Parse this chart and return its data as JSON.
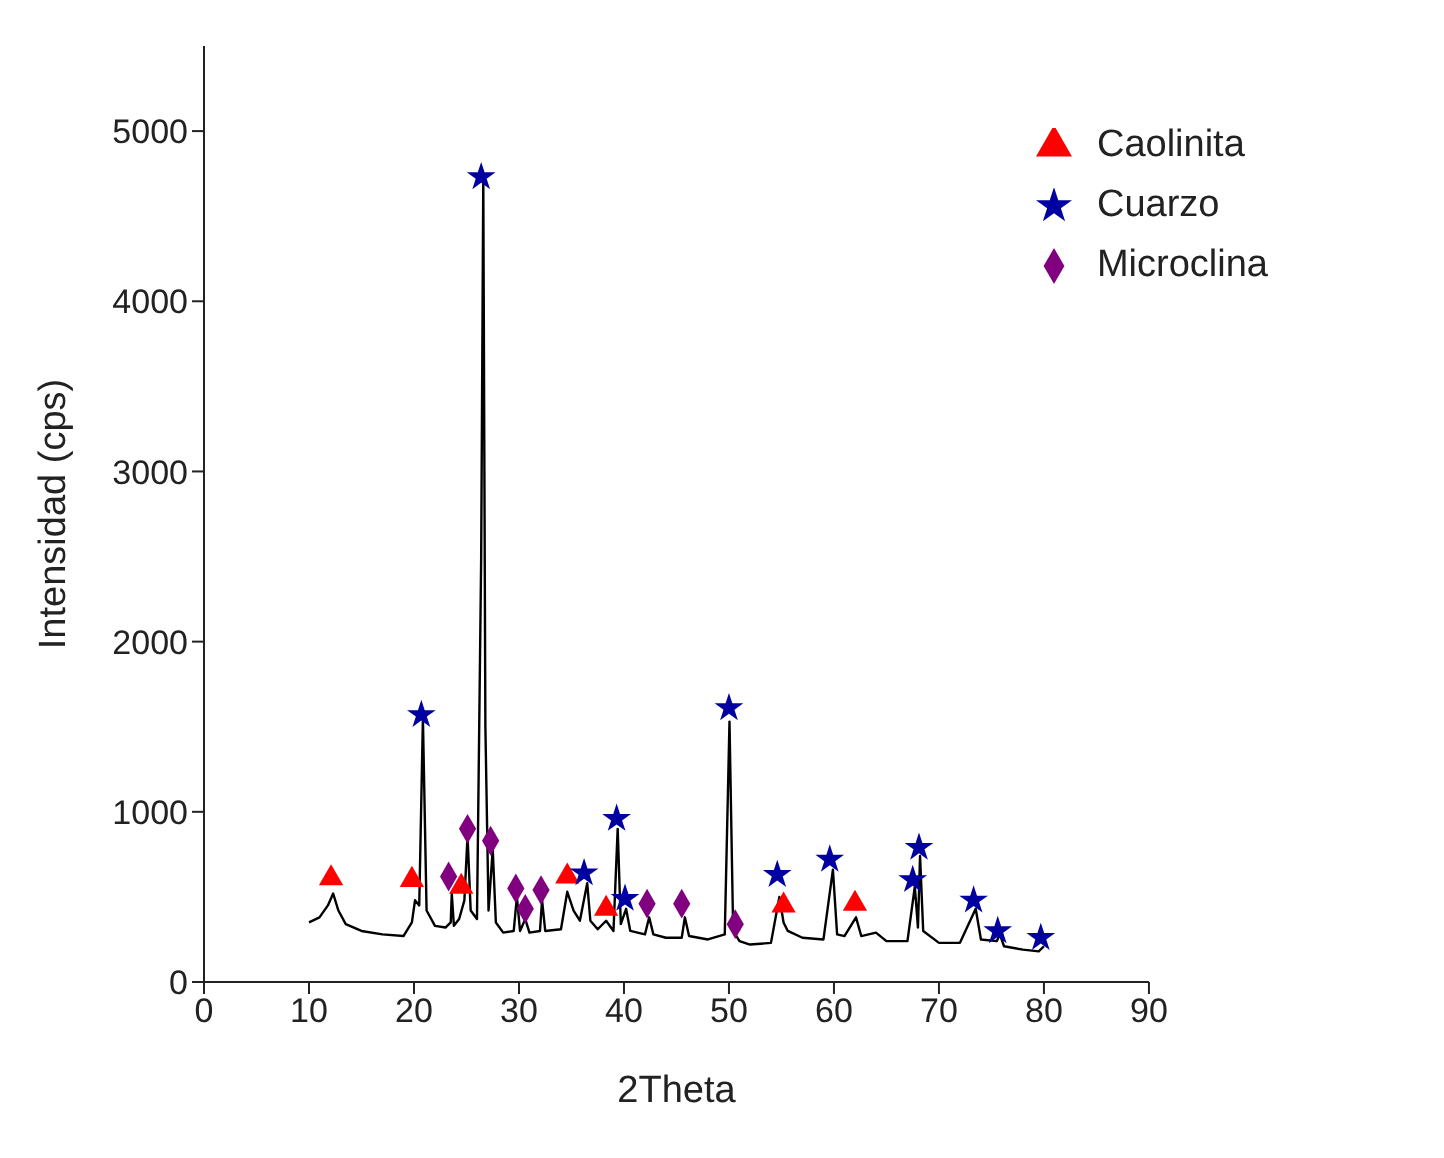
{
  "chart_data": {
    "type": "line",
    "xlabel": "2Theta",
    "ylabel": "Intensidad (cps)",
    "xlim": [
      0,
      90
    ],
    "xticks": [
      0,
      10,
      20,
      30,
      40,
      50,
      60,
      70,
      80,
      90
    ],
    "ylim": [
      0,
      5500
    ],
    "yticks": [
      0,
      1000,
      2000,
      3000,
      4000,
      5000
    ],
    "grid": false,
    "legend": "top right",
    "series": [
      {
        "color": "#000000",
        "marker": "none",
        "x": [
          10,
          11,
          11.8,
          12.3,
          12.8,
          13.5,
          15,
          17,
          19,
          19.8,
          20.1,
          20.5,
          20.85,
          21.2,
          22,
          23,
          23.5,
          23.6,
          23.8,
          24.3,
          24.8,
          25.1,
          25.4,
          26,
          26.4,
          26.6,
          26.8,
          27.1,
          27.5,
          27.8,
          28.5,
          29.5,
          29.8,
          30.1,
          30.6,
          31,
          32,
          32.2,
          32.5,
          34,
          34.6,
          35.2,
          35.8,
          36.5,
          36.8,
          37.5,
          38.3,
          39,
          39.4,
          39.7,
          40.2,
          40.6,
          42,
          42.4,
          42.8,
          44,
          45.5,
          45.8,
          46.2,
          48,
          49.6,
          50.05,
          50.4,
          51,
          52,
          54,
          54.8,
          55.2,
          55.6,
          57,
          59,
          59.9,
          60.3,
          61,
          62.1,
          62.6,
          64,
          65,
          67,
          67.7,
          68,
          68.2,
          68.5,
          70,
          72,
          73.5,
          74,
          75.5,
          75.8,
          76.2,
          78,
          79.5,
          80
        ],
        "values": [
          350,
          380,
          450,
          520,
          420,
          340,
          300,
          280,
          270,
          350,
          480,
          450,
          1550,
          420,
          330,
          320,
          350,
          520,
          330,
          370,
          480,
          860,
          420,
          370,
          2500,
          4720,
          1500,
          420,
          780,
          350,
          290,
          300,
          500,
          300,
          370,
          290,
          300,
          480,
          300,
          310,
          530,
          420,
          360,
          580,
          360,
          310,
          360,
          300,
          900,
          340,
          430,
          300,
          280,
          380,
          280,
          260,
          260,
          380,
          270,
          250,
          280,
          1530,
          300,
          240,
          220,
          230,
          500,
          350,
          300,
          260,
          250,
          660,
          280,
          270,
          380,
          270,
          290,
          240,
          240,
          560,
          320,
          740,
          300,
          230,
          230,
          430,
          250,
          240,
          280,
          210,
          190,
          180,
          210
        ]
      },
      {
        "type": "scatter",
        "name": "Caolinita",
        "color": "#ff0000",
        "marker": "triangle",
        "x": [
          12.1,
          19.8,
          24.5,
          34.6,
          38.3,
          55.2,
          62
        ],
        "values": [
          610,
          600,
          560,
          620,
          430,
          450,
          460
        ]
      },
      {
        "type": "scatter",
        "name": "Cuarzo",
        "color": "#0000a0",
        "marker": "star",
        "x": [
          20.7,
          26.4,
          36.2,
          39.3,
          40.1,
          50,
          54.6,
          59.6,
          67.5,
          68.1,
          73.3,
          75.6,
          79.7
        ],
        "values": [
          1570,
          4730,
          640,
          960,
          490,
          1610,
          630,
          720,
          600,
          790,
          480,
          300,
          260
        ]
      },
      {
        "type": "scatter",
        "name": "Microclina",
        "color": "#800080",
        "marker": "diamond",
        "x": [
          23.3,
          25.1,
          27.3,
          29.7,
          30.6,
          32.1,
          42.2,
          45.5,
          50.6
        ],
        "values": [
          620,
          900,
          830,
          550,
          430,
          540,
          460,
          460,
          340
        ]
      }
    ]
  }
}
